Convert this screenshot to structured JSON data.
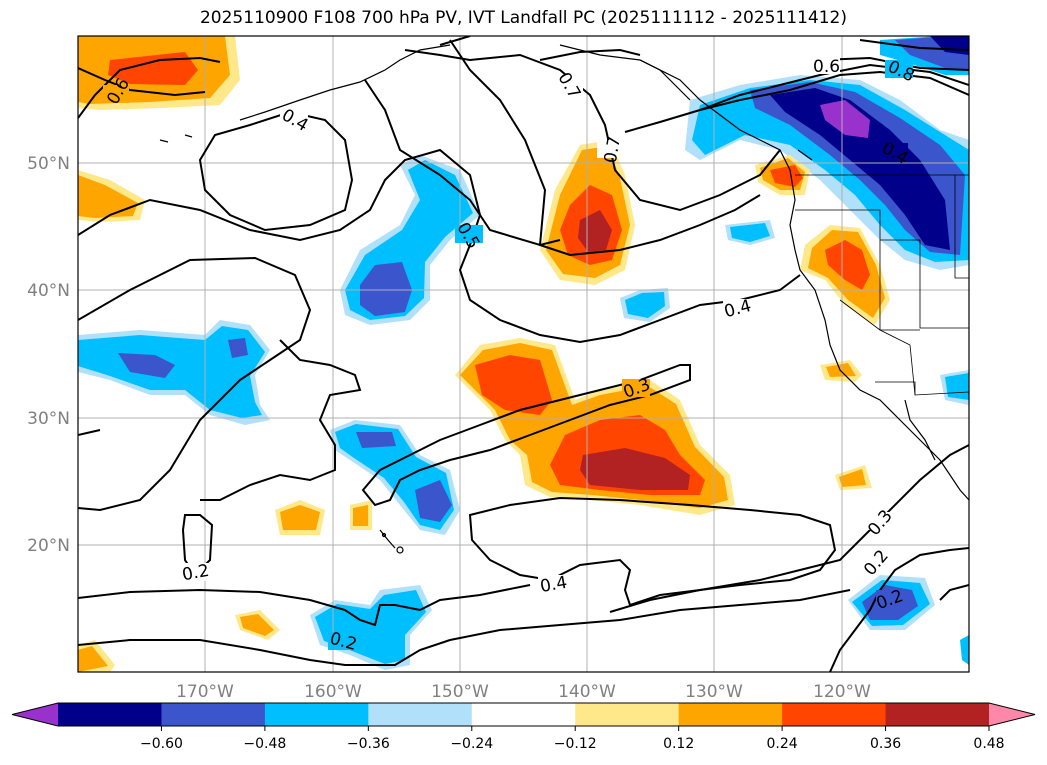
{
  "title": "2025110900 F108 700 hPa PV, IVT Landfall PC (2025111112 - 2025111412)",
  "lat_labels": [
    "50°N",
    "40°N",
    "30°N",
    "20°N"
  ],
  "lon_labels": [
    "170°W",
    "160°W",
    "150°W",
    "140°W",
    "130°W",
    "120°W"
  ],
  "contour_labels": [
    "0.6",
    "0.4",
    "0.7",
    "0.7",
    "0.6",
    "0.8",
    "0.4",
    "0.5",
    "0.4",
    "0.3",
    "0.3",
    "0.2",
    "0.2",
    "0.4",
    "0.2",
    "0.2"
  ],
  "colorbar": {
    "ticks": [
      "−0.60",
      "−0.48",
      "−0.36",
      "−0.24",
      "−0.12",
      "0.12",
      "0.24",
      "0.36",
      "0.48",
      "0.60"
    ],
    "colors": [
      "#9932cc",
      "#00008b",
      "#3b55cc",
      "#00bfff",
      "#b0e0fa",
      "#ffffff",
      "#ffe88a",
      "#ffa500",
      "#ff4500",
      "#b22222",
      "#ff88aa"
    ]
  },
  "palette": {
    "neg3": "#3b55cc",
    "neg2": "#00bfff",
    "neg1": "#b0e0fa",
    "pos1": "#ffe88a",
    "pos2": "#ffa500",
    "pos3": "#ff4500",
    "pos4": "#b22222",
    "neg4": "#00008b",
    "neg5": "#9932cc"
  }
}
